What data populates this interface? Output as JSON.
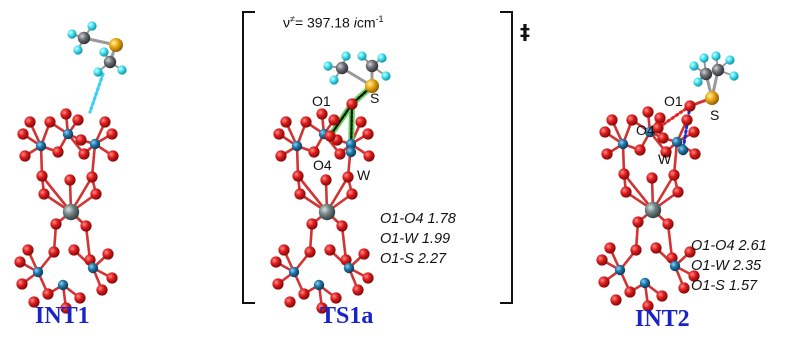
{
  "structures": [
    {
      "caption": "INT1"
    },
    {
      "caption": "TS1a",
      "frequency": {
        "symbol": "ν",
        "superscript": "≠",
        "equals": "= 397.18 ",
        "imag": "i",
        "unit": "cm",
        "unit_exp": "-1"
      },
      "atoms": {
        "o1": "O1",
        "s": "S",
        "o4": "O4",
        "w": "W"
      },
      "geometry": [
        "O1-O4 1.78",
        "O1-W 1.99",
        "O1-S 2.27"
      ]
    },
    {
      "caption": "INT2",
      "atoms": {
        "o1": "O1",
        "s": "S",
        "o4": "O4",
        "w": "W"
      },
      "geometry": [
        "O1-O4 2.61",
        "O1-W 2.35",
        "O1-S 1.57"
      ]
    }
  ],
  "ts_marker": "‡",
  "colors": {
    "oxygen": "#d81818",
    "tungsten": "#1c6e9a",
    "carbon": "#6b6e73",
    "sulfur": "#e8a812",
    "hydrogen": "#35dff0",
    "heteroatom": "#6a7f80",
    "caption": "#1a23c8",
    "ts_bond": "#63d35a",
    "dots_red": "#ee2222",
    "dots_blue": "#1c2ad0",
    "dots_cyan": "#3ad0ee"
  }
}
